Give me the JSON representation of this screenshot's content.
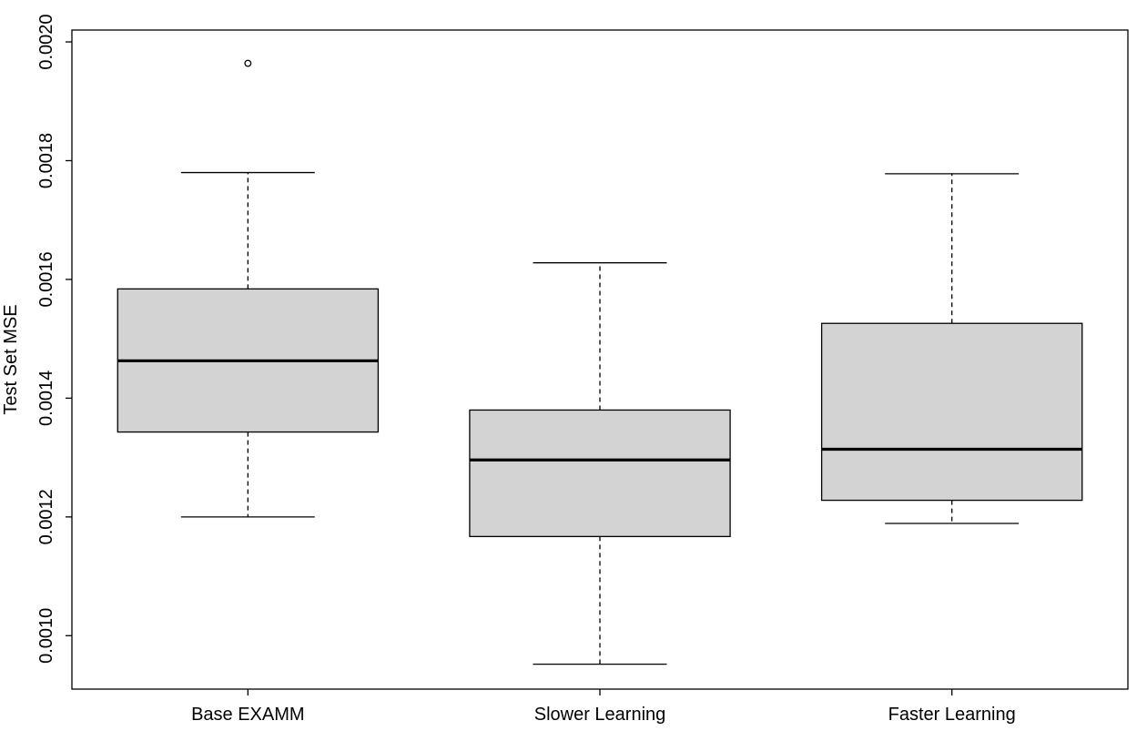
{
  "chart_data": {
    "type": "boxplot",
    "title": "",
    "xlabel": "",
    "ylabel": "Test Set MSE",
    "ylim": [
      0.00091,
      0.00202
    ],
    "yticks": [
      0.001,
      0.0012,
      0.0014,
      0.0016,
      0.0018,
      0.002
    ],
    "ytick_labels": [
      "0.0010",
      "0.0012",
      "0.0014",
      "0.0016",
      "0.0018",
      "0.0020"
    ],
    "grid": false,
    "categories": [
      "Base EXAMM",
      "Slower Learning",
      "Faster Learning"
    ],
    "boxes": [
      {
        "category": "Base EXAMM",
        "min": 0.0012,
        "q1": 0.001343,
        "median": 0.001463,
        "q3": 0.001584,
        "max": 0.00178,
        "outliers": [
          0.001964
        ]
      },
      {
        "category": "Slower Learning",
        "min": 0.000952,
        "q1": 0.001167,
        "median": 0.001296,
        "q3": 0.00138,
        "max": 0.001628,
        "outliers": []
      },
      {
        "category": "Faster Learning",
        "min": 0.001189,
        "q1": 0.001228,
        "median": 0.001314,
        "q3": 0.001526,
        "max": 0.001778,
        "outliers": []
      }
    ],
    "colors": {
      "box_fill": "#d3d3d3",
      "stroke": "#000000",
      "background": "#ffffff"
    }
  }
}
